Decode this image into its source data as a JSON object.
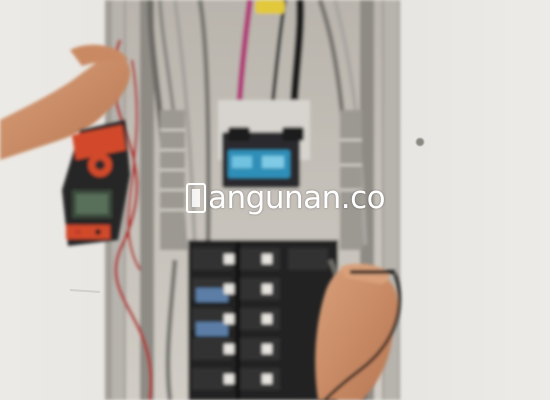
{
  "photo": {
    "subject": "electrical-panel-inspection",
    "watermark": "angunan.co",
    "colors": {
      "wall": "#e6e4e0",
      "panel_frame": "#9a9690",
      "panel_back": "#c9c6c0",
      "breaker_black": "#1c1c1e",
      "meter_red": "#d14a2a",
      "skin": "#c98a64",
      "wire_red": "#b02a2a",
      "wire_magenta": "#b0407a",
      "label_blue": "#2f8fb8"
    }
  }
}
